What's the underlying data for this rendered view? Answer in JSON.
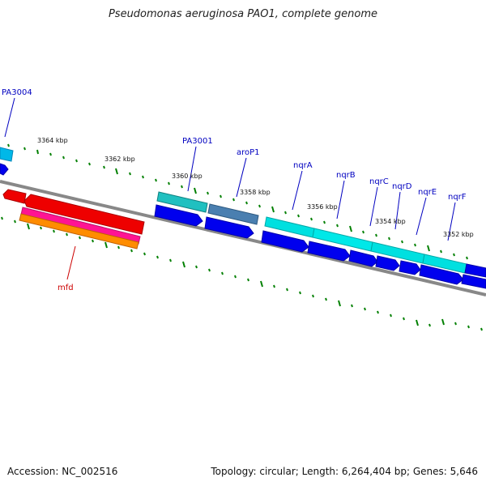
{
  "title": "Pseudomonas aeruginosa PAO1, complete genome",
  "footer": {
    "accession": "Accession: NC_002516",
    "summary": "Topology: circular; Length: 6,264,404 bp; Genes: 5,646"
  },
  "scale_labels": [
    "3364 kbp",
    "3362 kbp",
    "3360 kbp",
    "3358 kbp",
    "3356 kbp",
    "3354 kbp",
    "3352 kbp"
  ],
  "gene_labels": [
    "PA3004",
    "PA3001",
    "aroP1",
    "nqrA",
    "nqrB",
    "nqrC",
    "nqrD",
    "nqrE",
    "nqrF",
    "mfd"
  ],
  "colors": {
    "backbone": "#888888",
    "tick": "#008000",
    "label_forward": "#0000c0",
    "label_reverse": "#cc0000",
    "cds_blue": "#0000ee",
    "gene_cyan": "#00e0e0",
    "gene_teal": "#20b0b0",
    "gene_steel": "#4a7fb0",
    "gene_red": "#ee0000",
    "gene_pink": "#ff1493",
    "gene_orange": "#ff8c00"
  }
}
